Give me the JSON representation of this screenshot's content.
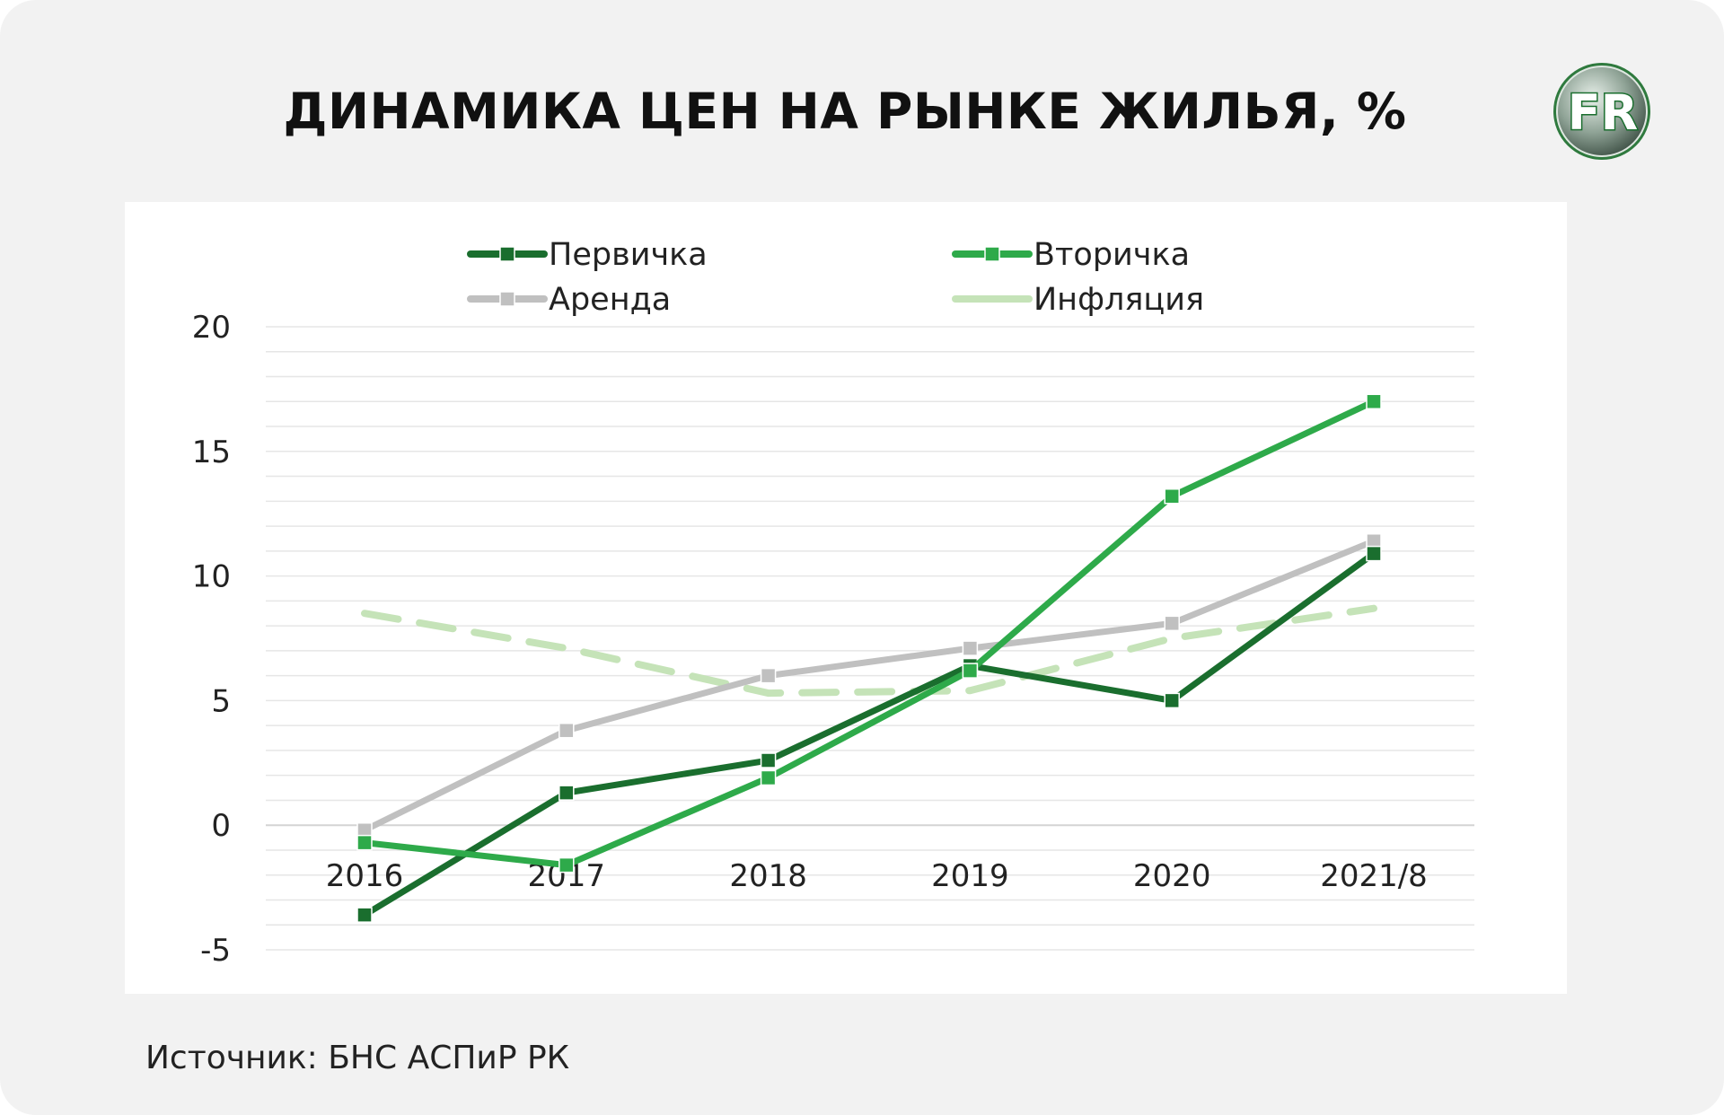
{
  "title": "ДИНАМИКА ЦЕН НА РЫНКЕ ЖИЛЬЯ, %",
  "logo": {
    "icon": "fr-logo-icon",
    "text": "FR"
  },
  "source": "Источник: БНС АСПиР РК",
  "colors": {
    "background": "#f2f2f2",
    "plot_background": "#ffffff",
    "primary": "#1a6e2e",
    "secondary": "#2eaa4a",
    "rent": "#c0c0c0",
    "inflation": "#c5e3b8",
    "grid": "#e6e6e6"
  },
  "chart_data": {
    "type": "line",
    "categories": [
      "2016",
      "2017",
      "2018",
      "2019",
      "2020",
      "2021/8"
    ],
    "ylim": [
      -5,
      20
    ],
    "yticks": [
      "20",
      "15",
      "10",
      "5",
      "0",
      "-5"
    ],
    "grid": true,
    "legend_position": "top",
    "series": [
      {
        "name": "Первичка",
        "color": "#1a6e2e",
        "style": "solid",
        "markers": true,
        "values": [
          -3.6,
          1.3,
          2.6,
          6.4,
          5.0,
          10.9
        ]
      },
      {
        "name": "Вторичка",
        "color": "#2eaa4a",
        "style": "solid",
        "markers": true,
        "values": [
          -0.7,
          -1.6,
          1.9,
          6.2,
          13.2,
          17.0
        ]
      },
      {
        "name": "Аренда",
        "color": "#c0c0c0",
        "style": "solid",
        "markers": true,
        "values": [
          -0.2,
          3.8,
          6.0,
          7.1,
          8.1,
          11.4
        ]
      },
      {
        "name": "Инфляция",
        "color": "#c5e3b8",
        "style": "dashed",
        "markers": false,
        "values": [
          8.5,
          7.1,
          5.3,
          5.4,
          7.5,
          8.7
        ]
      }
    ]
  }
}
